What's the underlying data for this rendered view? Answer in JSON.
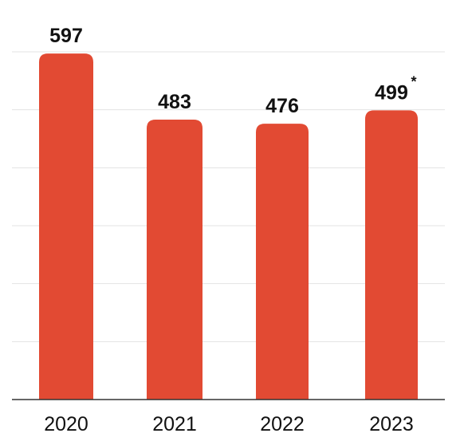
{
  "chart_data": {
    "type": "bar",
    "categories": [
      "2020",
      "2021",
      "2022",
      "2023"
    ],
    "values": [
      597,
      483,
      476,
      499
    ],
    "value_labels": [
      "597",
      "483",
      "476",
      "499"
    ],
    "value_notes": [
      "",
      "",
      "",
      "*"
    ],
    "title": "",
    "xlabel": "",
    "ylabel": "",
    "ylim": [
      0,
      600
    ],
    "grid": true,
    "legend": "none",
    "colors": {
      "bar": "#e24a33",
      "grid": "#e3e3e3",
      "axis": "#333333",
      "text": "#111111"
    }
  }
}
